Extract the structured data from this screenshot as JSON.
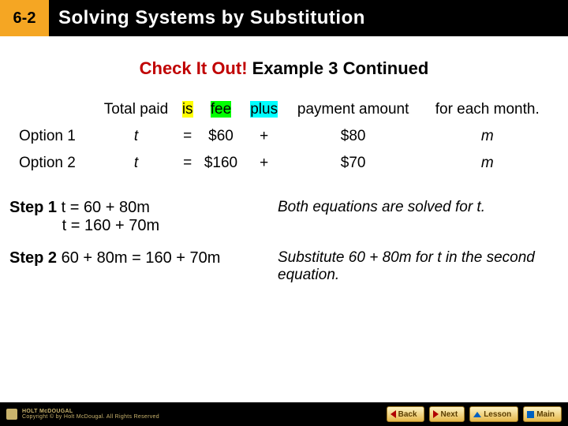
{
  "header": {
    "lesson": "6-2",
    "title": "Solving Systems by Substitution"
  },
  "subtitle": {
    "part1": "Check It Out!",
    "part2": " Example 3 Continued"
  },
  "table": {
    "headers": {
      "c0": "",
      "c1": "Total paid",
      "c2": "is",
      "c3": "fee",
      "c4": "plus",
      "c5": "payment amount",
      "c6": "for each month."
    },
    "rows": [
      {
        "label": "Option 1",
        "c1": "t",
        "c2": "=",
        "c3": "$60",
        "c4": "+",
        "c5": "$80",
        "c6": "m"
      },
      {
        "label": "Option 2",
        "c1": "t",
        "c2": "=",
        "c3": "$160",
        "c4": "+",
        "c5": "$70",
        "c6": "m"
      }
    ],
    "highlights": {
      "is": "hl-yellow",
      "fee": "hl-green",
      "plus": "hl-cyan"
    },
    "fontsize": 19,
    "cell_padding": 6
  },
  "steps": [
    {
      "label": "Step 1",
      "body": " t = 60 + 80m\n            t = 160 + 70m",
      "note": "Both equations are solved for t."
    },
    {
      "label": "Step 2",
      "body": " 60 + 80m = 160 + 70m",
      "note": "Substitute 60 + 80m for t in the second equation."
    }
  ],
  "footer": {
    "copyright": "HOLT McDOUGAL",
    "subcopy": "Copyright © by Holt McDougal. All Rights Reserved",
    "buttons": {
      "back": "Back",
      "next": "Next",
      "lesson": "Lesson",
      "main": "Main"
    }
  },
  "colors": {
    "header_bg": "#000000",
    "badge_bg": "#f5a623",
    "red": "#c00000",
    "yellow": "#ffff00",
    "green": "#00ff00",
    "cyan": "#00ffff",
    "footer_text": "#c9b36d"
  }
}
